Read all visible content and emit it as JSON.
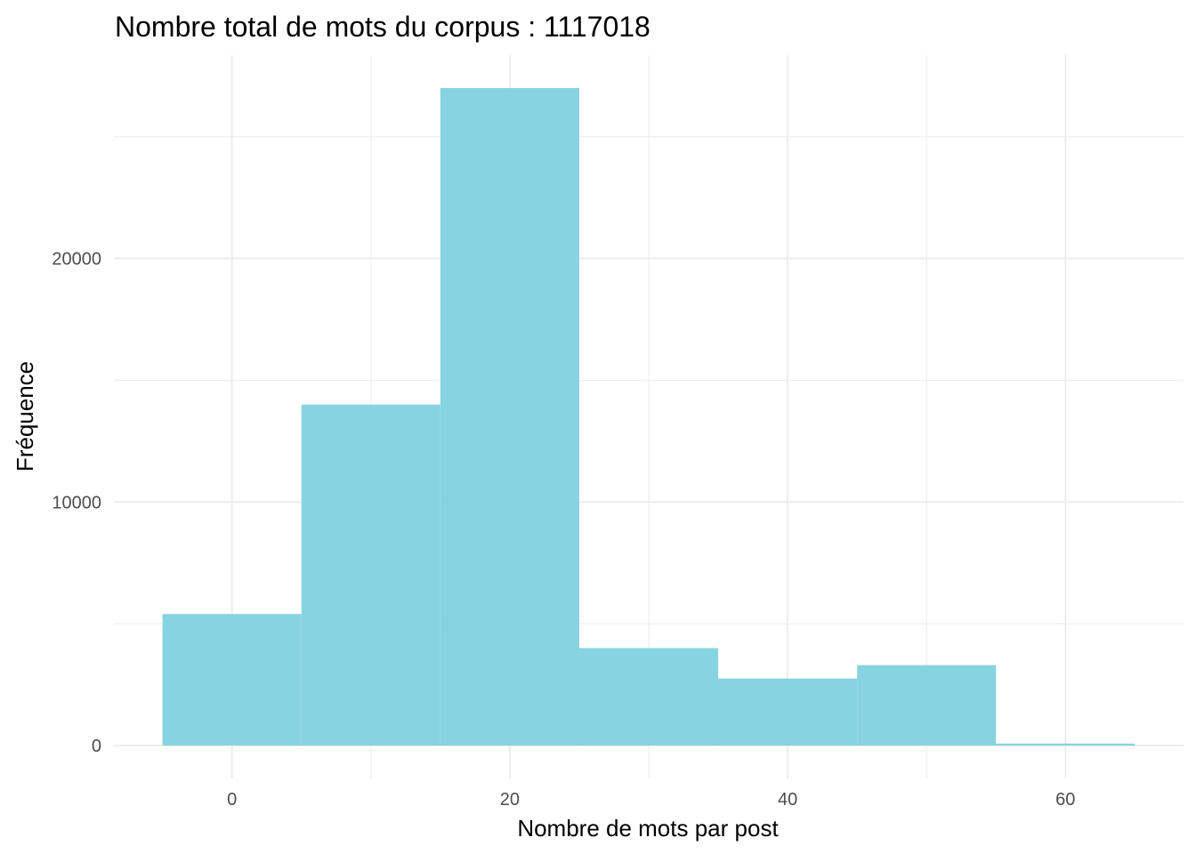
{
  "chart_data": {
    "type": "bar",
    "title": "Nombre total de mots du corpus : 1117018",
    "xlabel": "Nombre de mots par post",
    "ylabel": "Fréquence",
    "bins": [
      {
        "x0": -5,
        "x1": 5,
        "count": 5400
      },
      {
        "x0": 5,
        "x1": 15,
        "count": 14000
      },
      {
        "x0": 15,
        "x1": 25,
        "count": 27000
      },
      {
        "x0": 25,
        "x1": 35,
        "count": 4000
      },
      {
        "x0": 35,
        "x1": 45,
        "count": 2750
      },
      {
        "x0": 45,
        "x1": 55,
        "count": 3300
      },
      {
        "x0": 55,
        "x1": 65,
        "count": 80
      }
    ],
    "xlim": [
      -8.5,
      68.5
    ],
    "ylim": [
      -1350,
      28350
    ],
    "x_ticks": [
      0,
      20,
      40,
      60
    ],
    "x_minor_ticks": [
      10,
      30,
      50
    ],
    "y_ticks": [
      0,
      10000,
      20000
    ],
    "y_minor_ticks": [
      5000,
      15000,
      25000
    ],
    "x_tick_labels": [
      "0",
      "20",
      "40",
      "60"
    ],
    "y_tick_labels": [
      "0",
      "10000",
      "20000"
    ],
    "grid": true,
    "bar_color": "#87d3e1",
    "grid_color": "#ebebeb"
  }
}
